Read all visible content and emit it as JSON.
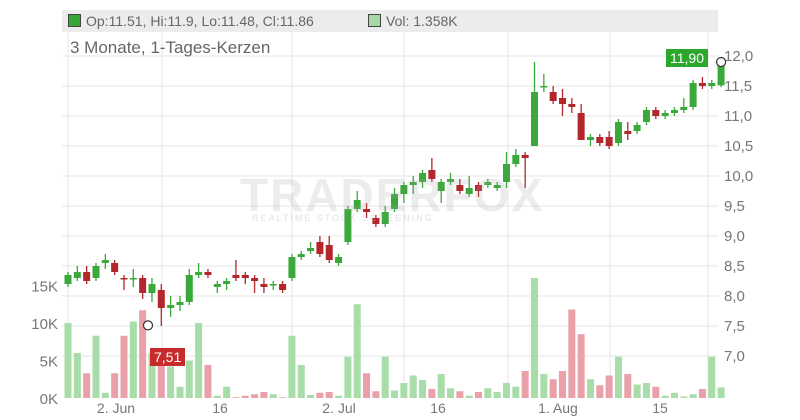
{
  "legend": {
    "ohlc": "Op:11.51, Hi:11.9, Lo:11.48, Cl:11.86",
    "vol": "Vol: 1.358K",
    "up_color": "#39a639",
    "vol_color": "#a6d8a6"
  },
  "subtitle": "3 Monate, 1-Tages-Kerzen",
  "watermark": {
    "brand": "TRADERFOX",
    "tagline": "REALTIME STOCK SCREENING"
  },
  "badges": {
    "last": "11,90",
    "low": "7,51"
  },
  "colors": {
    "up": "#3aa83a",
    "down": "#b3262b",
    "vol_up": "#a8dca8",
    "vol_down": "#eaa0a8",
    "grid": "#e6e6e6"
  },
  "chart_data": {
    "type": "candlestick",
    "x_labels": [
      "2. Jun",
      "16",
      "2. Jul",
      "16",
      "1. Aug",
      "15"
    ],
    "y_ticks": [
      "12,0",
      "11,5",
      "11,0",
      "10,5",
      "10,0",
      "9,5",
      "9,0",
      "8,5",
      "8,0",
      "7,5",
      "7,0"
    ],
    "y_range": [
      6.7,
      12.3
    ],
    "vol_ticks": [
      "15K",
      "10K",
      "5K",
      "0K"
    ],
    "vol_range": [
      0,
      17000
    ],
    "ohlc": [
      [
        8.2,
        8.4,
        8.15,
        8.35
      ],
      [
        8.3,
        8.5,
        8.25,
        8.4
      ],
      [
        8.4,
        8.5,
        8.2,
        8.25
      ],
      [
        8.3,
        8.55,
        8.25,
        8.5
      ],
      [
        8.55,
        8.7,
        8.45,
        8.6
      ],
      [
        8.55,
        8.6,
        8.35,
        8.4
      ],
      [
        8.3,
        8.35,
        8.1,
        8.28
      ],
      [
        8.3,
        8.45,
        8.15,
        8.3
      ],
      [
        8.3,
        8.35,
        7.95,
        8.05
      ],
      [
        8.05,
        8.3,
        7.9,
        8.2
      ],
      [
        8.1,
        8.2,
        7.5,
        7.8
      ],
      [
        7.8,
        8.0,
        7.65,
        7.85
      ],
      [
        7.85,
        8.0,
        7.75,
        7.9
      ],
      [
        7.9,
        8.45,
        7.85,
        8.35
      ],
      [
        8.35,
        8.55,
        8.3,
        8.4
      ],
      [
        8.4,
        8.45,
        8.3,
        8.35
      ],
      [
        8.15,
        8.25,
        8.05,
        8.2
      ],
      [
        8.2,
        8.3,
        8.1,
        8.25
      ],
      [
        8.35,
        8.6,
        8.25,
        8.3
      ],
      [
        8.35,
        8.4,
        8.2,
        8.3
      ],
      [
        8.3,
        8.35,
        8.05,
        8.25
      ],
      [
        8.2,
        8.3,
        8.05,
        8.15
      ],
      [
        8.2,
        8.25,
        8.1,
        8.2
      ],
      [
        8.2,
        8.25,
        8.05,
        8.1
      ],
      [
        8.3,
        8.7,
        8.25,
        8.65
      ],
      [
        8.65,
        8.75,
        8.6,
        8.7
      ],
      [
        8.75,
        8.9,
        8.7,
        8.8
      ],
      [
        8.9,
        9.0,
        8.65,
        8.7
      ],
      [
        8.85,
        9.0,
        8.55,
        8.6
      ],
      [
        8.55,
        8.7,
        8.5,
        8.65
      ],
      [
        8.9,
        9.5,
        8.85,
        9.45
      ],
      [
        9.45,
        9.75,
        9.4,
        9.6
      ],
      [
        9.45,
        9.55,
        9.3,
        9.4
      ],
      [
        9.3,
        9.35,
        9.15,
        9.2
      ],
      [
        9.2,
        9.5,
        9.15,
        9.4
      ],
      [
        9.45,
        9.8,
        9.4,
        9.7
      ],
      [
        9.7,
        9.9,
        9.55,
        9.85
      ],
      [
        9.85,
        10.0,
        9.7,
        9.9
      ],
      [
        9.9,
        10.1,
        9.8,
        10.05
      ],
      [
        10.1,
        10.3,
        9.9,
        9.95
      ],
      [
        9.75,
        9.95,
        9.55,
        9.9
      ],
      [
        9.9,
        10.05,
        9.85,
        9.95
      ],
      [
        9.85,
        9.95,
        9.7,
        9.75
      ],
      [
        9.7,
        10.0,
        9.65,
        9.8
      ],
      [
        9.85,
        9.9,
        9.65,
        9.75
      ],
      [
        9.85,
        9.95,
        9.8,
        9.9
      ],
      [
        9.8,
        9.9,
        9.75,
        9.85
      ],
      [
        9.9,
        10.4,
        9.8,
        10.2
      ],
      [
        10.2,
        10.45,
        10.15,
        10.35
      ],
      [
        10.35,
        10.4,
        9.8,
        10.3
      ],
      [
        10.5,
        11.9,
        10.5,
        11.4
      ],
      [
        11.5,
        11.7,
        11.4,
        11.5
      ],
      [
        11.4,
        11.5,
        11.2,
        11.25
      ],
      [
        11.3,
        11.45,
        11.0,
        11.2
      ],
      [
        11.2,
        11.3,
        11.05,
        11.15
      ],
      [
        11.05,
        11.2,
        10.6,
        10.6
      ],
      [
        10.6,
        10.7,
        10.5,
        10.65
      ],
      [
        10.65,
        10.7,
        10.5,
        10.55
      ],
      [
        10.65,
        10.75,
        10.45,
        10.5
      ],
      [
        10.55,
        10.95,
        10.5,
        10.9
      ],
      [
        10.75,
        10.9,
        10.6,
        10.7
      ],
      [
        10.75,
        10.9,
        10.7,
        10.85
      ],
      [
        10.9,
        11.15,
        10.85,
        11.1
      ],
      [
        11.1,
        11.15,
        10.95,
        11.0
      ],
      [
        11.0,
        11.1,
        10.95,
        11.05
      ],
      [
        11.05,
        11.15,
        11.0,
        11.1
      ],
      [
        11.1,
        11.3,
        11.05,
        11.15
      ],
      [
        11.15,
        11.6,
        11.1,
        11.55
      ],
      [
        11.55,
        11.65,
        11.45,
        11.5
      ],
      [
        11.5,
        11.6,
        11.45,
        11.55
      ],
      [
        11.51,
        11.9,
        11.48,
        11.86
      ]
    ],
    "volume": [
      10000,
      6000,
      3300,
      8300,
      700,
      3300,
      8300,
      10200,
      11700,
      6000,
      5700,
      4200,
      1500,
      5000,
      10000,
      4400,
      300,
      1500,
      100,
      300,
      500,
      800,
      500,
      100,
      8300,
      4400,
      400,
      700,
      800,
      300,
      5500,
      12500,
      3300,
      900,
      5500,
      1000,
      2000,
      3000,
      2400,
      1200,
      3200,
      1300,
      900,
      300,
      800,
      1300,
      800,
      2000,
      1500,
      3600,
      16000,
      3200,
      2500,
      3600,
      11800,
      8500,
      2500,
      1700,
      3000,
      5500,
      3200,
      1800,
      2000,
      1500,
      300,
      700,
      200,
      500,
      1200,
      5500,
      1400
    ]
  }
}
